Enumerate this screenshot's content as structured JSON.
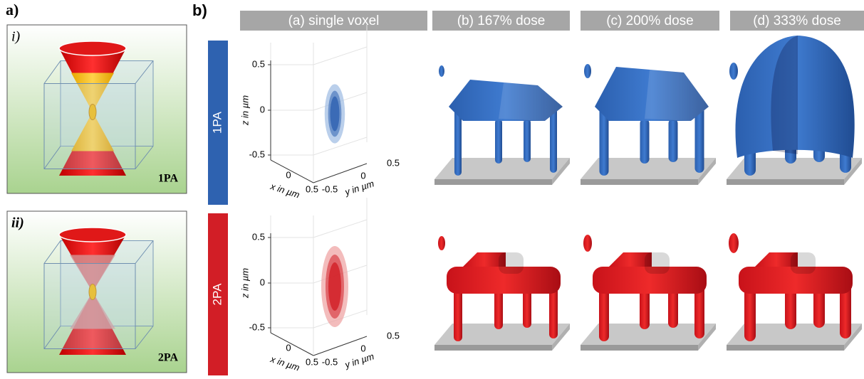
{
  "panel_a": {
    "label": "a)",
    "diagrams": [
      {
        "label": "i)",
        "mode": "1PA"
      },
      {
        "label": "ii)",
        "mode": "2PA"
      }
    ]
  },
  "panel_b": {
    "label": "b)",
    "columns": [
      "(a) single voxel",
      "(b) 167% dose",
      "(c) 200% dose",
      "(d) 333% dose"
    ],
    "rows": [
      {
        "label": "1PA",
        "plot": {
          "z_label": "z in µm",
          "x_label": "x in µm",
          "y_label": "y in µm",
          "z_ticks": [
            "0.5",
            "0",
            "-0.5"
          ],
          "x_ticks": [
            "0",
            "0.5"
          ],
          "y_ticks": [
            "-0.5",
            "0",
            "0.5"
          ]
        }
      },
      {
        "label": "2PA",
        "plot": {
          "z_label": "z in µm",
          "x_label": "x in µm",
          "y_label": "y in µm",
          "z_ticks": [
            "0.5",
            "0",
            "-0.5"
          ],
          "x_ticks": [
            "0",
            "0.5"
          ],
          "y_ticks": [
            "-0.5",
            "0",
            "0.5"
          ]
        }
      }
    ]
  }
}
